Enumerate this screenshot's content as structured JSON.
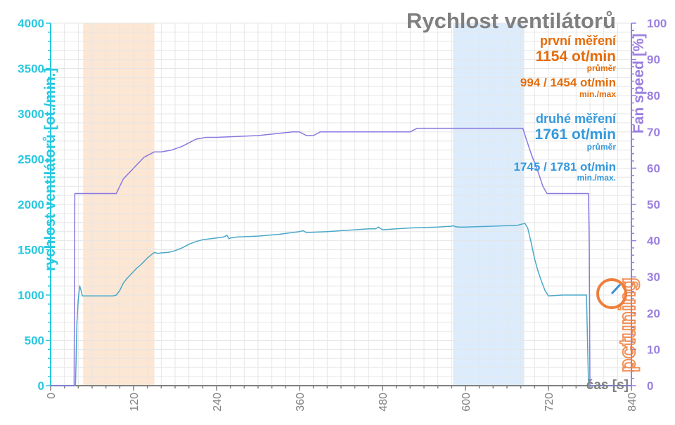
{
  "colors": {
    "left_axis": "#28c8e0",
    "right_axis": "#9b7fe0",
    "fan_line": "#8a78e0",
    "rpm_line": "#4aa8c8",
    "first_highlight": "#fbe2cc",
    "second_highlight": "#d6e9fb",
    "first_text": "#e36c0a",
    "second_text": "#3399dd",
    "title": "#7f7f7f",
    "grid": "#e6e6e6",
    "x_axis": "#808080"
  },
  "legend": {
    "title": "Rychlost ventilátorů",
    "first": {
      "label": "první měření",
      "avg": "1154 ot/min",
      "avg_label": "průměr",
      "minmax": "994 / 1454 ot/min",
      "minmax_label": "min./max"
    },
    "second": {
      "label": "druhé měření",
      "avg": "1761 ot/min",
      "avg_label": "průměr",
      "minmax": "1745 / 1781 ot/min",
      "minmax_label": "min./max."
    }
  },
  "watermark": {
    "icon": "pctuning-logo-icon",
    "text": "pctuning"
  },
  "chart_data": {
    "type": "line",
    "title": "Rychlost ventilátorů",
    "xlabel": "čas [s]",
    "ylabel": "rychlost ventilátorů [ot./min.]",
    "y2label": "Fan speed [%]",
    "xlim": [
      0,
      840
    ],
    "ylim": [
      0,
      4000
    ],
    "y2lim": [
      0,
      100
    ],
    "xticks": [
      "0",
      "120",
      "240",
      "360",
      "480",
      "600",
      "720",
      "840"
    ],
    "yticks": [
      "0",
      "500",
      "1000",
      "1500",
      "2000",
      "2500",
      "3000",
      "3500",
      "4000"
    ],
    "y2ticks": [
      "0",
      "10",
      "20",
      "30",
      "40",
      "50",
      "60",
      "70",
      "80",
      "90",
      "100"
    ],
    "grid": true,
    "highlights": [
      {
        "from": 47,
        "to": 150,
        "color": "#fbe2cc"
      },
      {
        "from": 582,
        "to": 685,
        "color": "#d6e9fb"
      }
    ],
    "series": [
      {
        "axis": "left",
        "color": "#4aa8c8",
        "x": [
          0,
          34,
          36,
          38,
          40,
          42,
          44,
          46,
          50,
          60,
          70,
          80,
          90,
          95,
          100,
          105,
          110,
          115,
          120,
          125,
          130,
          135,
          140,
          145,
          150,
          155,
          160,
          170,
          180,
          190,
          200,
          210,
          220,
          240,
          250,
          255,
          258,
          260,
          270,
          300,
          330,
          350,
          360,
          365,
          370,
          400,
          420,
          440,
          460,
          470,
          474,
          478,
          480,
          500,
          520,
          540,
          560,
          580,
          582,
          585,
          590,
          600,
          620,
          640,
          660,
          675,
          683,
          686,
          690,
          695,
          700,
          705,
          710,
          715,
          720,
          740,
          760,
          775,
          778,
          780,
          800,
          840
        ],
        "y": [
          0,
          0,
          0,
          700,
          950,
          1100,
          1050,
          990,
          990,
          990,
          990,
          990,
          990,
          1000,
          1050,
          1130,
          1180,
          1220,
          1260,
          1300,
          1330,
          1370,
          1410,
          1440,
          1470,
          1460,
          1465,
          1470,
          1490,
          1520,
          1560,
          1590,
          1610,
          1630,
          1640,
          1660,
          1620,
          1630,
          1640,
          1650,
          1670,
          1690,
          1700,
          1710,
          1690,
          1700,
          1710,
          1720,
          1730,
          1730,
          1750,
          1730,
          1720,
          1730,
          1740,
          1745,
          1750,
          1760,
          1765,
          1755,
          1750,
          1750,
          1755,
          1760,
          1765,
          1770,
          1785,
          1790,
          1740,
          1580,
          1400,
          1260,
          1150,
          1050,
          990,
          1000,
          1000,
          1000,
          0,
          0,
          0,
          0
        ]
      },
      {
        "axis": "right",
        "color": "#8a78e0",
        "x": [
          0,
          34,
          35,
          36,
          95,
          100,
          105,
          110,
          115,
          120,
          125,
          130,
          135,
          140,
          145,
          150,
          160,
          175,
          190,
          200,
          210,
          225,
          240,
          300,
          350,
          360,
          370,
          380,
          390,
          520,
          530,
          680,
          683,
          688,
          695,
          705,
          712,
          718,
          778,
          779,
          780,
          840
        ],
        "y": [
          0,
          0,
          53,
          53,
          53,
          55,
          57,
          58,
          59,
          60,
          61,
          62,
          63,
          63.5,
          64,
          64.5,
          64.5,
          65,
          66,
          67,
          68,
          68.5,
          68.5,
          69,
          70,
          70,
          69,
          69,
          70,
          70,
          71,
          71,
          71,
          68,
          64,
          59,
          55,
          53,
          53,
          40,
          0,
          0
        ]
      }
    ]
  }
}
